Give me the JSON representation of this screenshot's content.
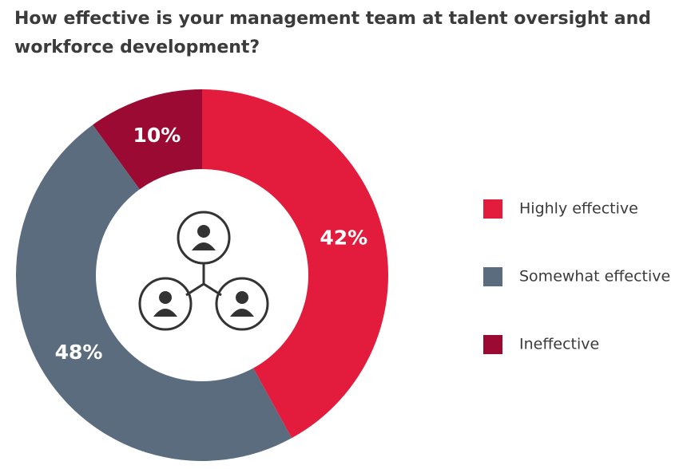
{
  "chart_data": {
    "type": "donut",
    "title": "How effective is your management team at talent oversight and workforce development?",
    "categories": [
      "Highly effective",
      "Somewhat effective",
      "Ineffective"
    ],
    "values": [
      42,
      48,
      10
    ],
    "value_labels": [
      "42%",
      "48%",
      "10%"
    ],
    "colors": [
      "#e31b3c",
      "#5b6c7e",
      "#9b0a33"
    ],
    "legend": "right"
  }
}
